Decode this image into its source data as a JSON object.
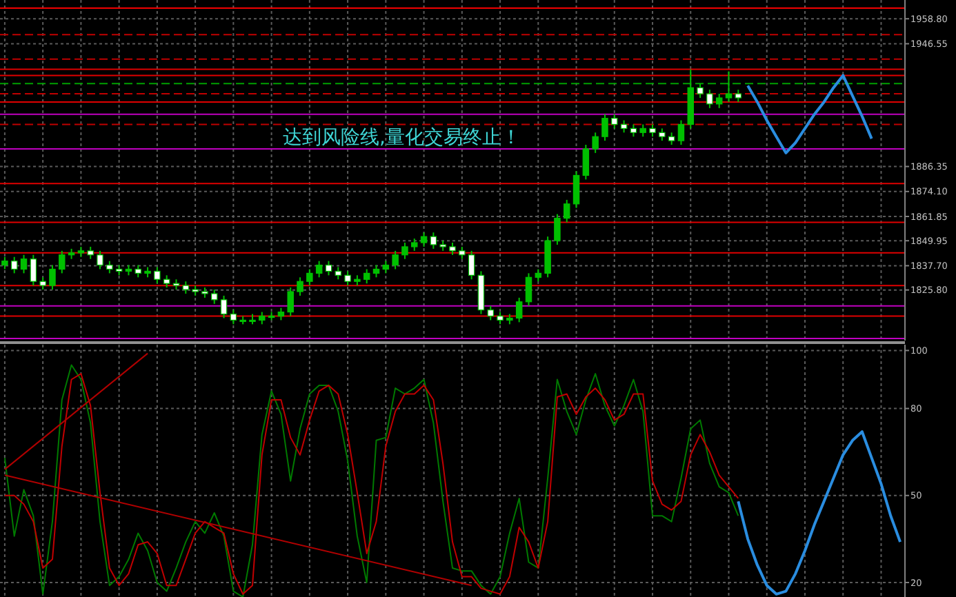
{
  "chart_data": [
    {
      "type": "candlestick",
      "annotations": [
        "达到风险线,量化交易终止！"
      ],
      "categories": [
        null,
        null,
        null,
        null,
        null,
        null,
        null,
        null,
        null,
        null,
        null,
        null,
        null,
        null,
        null,
        null,
        null,
        null,
        null,
        null,
        null,
        null,
        null,
        null,
        null,
        null,
        null,
        null,
        null,
        null,
        null,
        null,
        null,
        null,
        null,
        null,
        null,
        null,
        null,
        null,
        null,
        null,
        null,
        null,
        null,
        null,
        null,
        null,
        null,
        null,
        null,
        null,
        null,
        null,
        null,
        null,
        null,
        null,
        null,
        null,
        null,
        null,
        null,
        null,
        null,
        null,
        null,
        null,
        null,
        null,
        null,
        null,
        null,
        null,
        null,
        null,
        null,
        null,
        null,
        null,
        null,
        null,
        null,
        null,
        null,
        null,
        null,
        null,
        null,
        null,
        null,
        null,
        null,
        null,
        null
      ],
      "colors": [
        "#00c000",
        "#ffffff",
        "#00c000",
        "#ffffff",
        "#ffffff",
        "#00c000",
        "#00c000",
        "#00c000",
        "#00c000",
        "#ffffff",
        "#ffffff",
        "#ffffff",
        "#ffffff",
        "#00c000",
        "#ffffff",
        "#00c000",
        "#ffffff",
        "#ffffff",
        "#ffffff",
        "#ffffff",
        "#ffffff",
        "#ffffff",
        "#ffffff",
        "#ffffff",
        "#ffffff",
        "#00c000",
        "#00c000",
        "#00c000",
        "#00c000",
        "#00c000",
        "#00c000",
        "#00c000",
        "#00c000",
        "#00c000",
        "#ffffff",
        "#ffffff",
        "#ffffff",
        "#00c000",
        "#00c000",
        "#00c000",
        "#00c000",
        "#00c000",
        "#00c000",
        "#00c000",
        "#00c000",
        "#ffffff",
        "#ffffff",
        "#ffffff",
        "#ffffff",
        "#ffffff",
        "#ffffff",
        "#ffffff",
        "#ffffff",
        "#00c000",
        "#00c000",
        "#00c000",
        "#00c000",
        "#00c000",
        "#00c000",
        "#00c000",
        "#00c000",
        "#00c000",
        "#00c000",
        "#00c000",
        "#ffffff",
        "#ffffff",
        "#ffffff",
        "#00c000",
        "#ffffff",
        "#ffffff",
        "#ffffff",
        "#00c000",
        "#00c000",
        "#ffffff",
        "#ffffff",
        "#00c000",
        "#00c000",
        "#ffffff",
        null,
        null,
        null,
        null,
        null,
        null,
        null,
        null,
        null,
        null,
        null,
        null,
        null,
        null,
        null,
        null,
        null
      ],
      "ohlc": [
        [
          1838,
          1842,
          1836,
          1840
        ],
        [
          1840,
          1842,
          1834,
          1836
        ],
        [
          1836,
          1843,
          1834,
          1841
        ],
        [
          1841,
          1843,
          1828,
          1830
        ],
        [
          1830,
          1832,
          1826,
          1828
        ],
        [
          1828,
          1838,
          1826,
          1836
        ],
        [
          1836,
          1845,
          1834,
          1843
        ],
        [
          1843,
          1846,
          1841,
          1844
        ],
        [
          1844,
          1847,
          1842,
          1845
        ],
        [
          1845,
          1847,
          1841,
          1843
        ],
        [
          1843,
          1845,
          1836,
          1838
        ],
        [
          1838,
          1840,
          1834,
          1836
        ],
        [
          1836,
          1838,
          1833,
          1835
        ],
        [
          1835,
          1838,
          1833,
          1836
        ],
        [
          1836,
          1838,
          1832,
          1834
        ],
        [
          1834,
          1837,
          1832,
          1835
        ],
        [
          1835,
          1837,
          1829,
          1831
        ],
        [
          1831,
          1833,
          1827,
          1829
        ],
        [
          1829,
          1831,
          1826,
          1828
        ],
        [
          1828,
          1830,
          1824,
          1826
        ],
        [
          1826,
          1828,
          1823,
          1825
        ],
        [
          1825,
          1827,
          1822,
          1824
        ],
        [
          1824,
          1826,
          1819,
          1821
        ],
        [
          1821,
          1823,
          1812,
          1814
        ],
        [
          1814,
          1816,
          1809,
          1811
        ],
        [
          1811,
          1813,
          1809,
          1811
        ],
        [
          1811,
          1814,
          1809,
          1811
        ],
        [
          1811,
          1815,
          1809,
          1813
        ],
        [
          1813,
          1815,
          1811,
          1813
        ],
        [
          1813,
          1817,
          1811,
          1815
        ],
        [
          1815,
          1827,
          1813,
          1825
        ],
        [
          1825,
          1832,
          1823,
          1830
        ],
        [
          1830,
          1836,
          1828,
          1834
        ],
        [
          1834,
          1840,
          1832,
          1838
        ],
        [
          1838,
          1840,
          1833,
          1835
        ],
        [
          1835,
          1837,
          1831,
          1833
        ],
        [
          1833,
          1835,
          1828,
          1830
        ],
        [
          1830,
          1833,
          1828,
          1831
        ],
        [
          1831,
          1836,
          1829,
          1834
        ],
        [
          1834,
          1838,
          1832,
          1836
        ],
        [
          1836,
          1840,
          1834,
          1838
        ],
        [
          1838,
          1845,
          1836,
          1843
        ],
        [
          1843,
          1849,
          1841,
          1847
        ],
        [
          1847,
          1851,
          1845,
          1849
        ],
        [
          1849,
          1854,
          1847,
          1852
        ],
        [
          1852,
          1854,
          1846,
          1848
        ],
        [
          1848,
          1850,
          1845,
          1847
        ],
        [
          1847,
          1849,
          1843,
          1845
        ],
        [
          1845,
          1847,
          1841,
          1843
        ],
        [
          1843,
          1845,
          1831,
          1833
        ],
        [
          1833,
          1835,
          1814,
          1816
        ],
        [
          1816,
          1818,
          1811,
          1813
        ],
        [
          1813,
          1815,
          1809,
          1811
        ],
        [
          1811,
          1814,
          1809,
          1812
        ],
        [
          1812,
          1822,
          1810,
          1820
        ],
        [
          1820,
          1834,
          1818,
          1832
        ],
        [
          1832,
          1836,
          1830,
          1834
        ],
        [
          1834,
          1852,
          1832,
          1850
        ],
        [
          1850,
          1863,
          1848,
          1861
        ],
        [
          1861,
          1870,
          1859,
          1868
        ],
        [
          1868,
          1884,
          1866,
          1882
        ],
        [
          1882,
          1897,
          1880,
          1895
        ],
        [
          1895,
          1903,
          1893,
          1901
        ],
        [
          1901,
          1912,
          1899,
          1910
        ],
        [
          1910,
          1912,
          1905,
          1907
        ],
        [
          1907,
          1909,
          1903,
          1905
        ],
        [
          1905,
          1907,
          1901,
          1903
        ],
        [
          1903,
          1907,
          1901,
          1905
        ],
        [
          1905,
          1907,
          1901,
          1903
        ],
        [
          1903,
          1905,
          1899,
          1901
        ],
        [
          1901,
          1903,
          1897,
          1899
        ],
        [
          1899,
          1909,
          1897,
          1907
        ],
        [
          1907,
          1934,
          1905,
          1925
        ],
        [
          1925,
          1927,
          1920,
          1922
        ],
        [
          1922,
          1924,
          1915,
          1917
        ],
        [
          1917,
          1922,
          1915,
          1920
        ],
        [
          1920,
          1933,
          1918,
          1922
        ],
        [
          1922,
          1924,
          1918,
          1920
        ],
        null,
        null,
        null,
        null,
        null,
        null,
        null,
        null,
        null,
        null,
        null,
        null,
        null,
        null,
        null,
        null,
        null
      ],
      "series": [
        {
          "type": "line",
          "color": "#2a8de0",
          "values": [
            null,
            null,
            null,
            null,
            null,
            null,
            null,
            null,
            null,
            null,
            null,
            null,
            null,
            null,
            null,
            null,
            null,
            null,
            null,
            null,
            null,
            null,
            null,
            null,
            null,
            null,
            null,
            null,
            null,
            null,
            null,
            null,
            null,
            null,
            null,
            null,
            null,
            null,
            null,
            null,
            null,
            null,
            null,
            null,
            null,
            null,
            null,
            null,
            null,
            null,
            null,
            null,
            null,
            null,
            null,
            null,
            null,
            null,
            null,
            null,
            null,
            null,
            null,
            null,
            null,
            null,
            null,
            null,
            null,
            null,
            null,
            null,
            null,
            null,
            null,
            null,
            null,
            null,
            1926,
            1918,
            1909,
            1901,
            1893,
            1898,
            1905,
            1912,
            1918,
            1925,
            1931,
            1921,
            1911,
            1900,
            null,
            null,
            null
          ]
        }
      ],
      "ylim": [
        1801,
        1968
      ],
      "yticks": [
        {
          "value": 1958.8,
          "label": "1958.80"
        },
        {
          "value": 1946.55,
          "label": "1946.55"
        },
        {
          "value": 1886.35,
          "label": "1886.35"
        },
        {
          "value": 1874.1,
          "label": "1874.10"
        },
        {
          "value": 1861.85,
          "label": "1861.85"
        },
        {
          "value": 1849.95,
          "label": "1849.95"
        },
        {
          "value": 1837.7,
          "label": "1837.70"
        },
        {
          "value": 1825.8,
          "label": "1825.80"
        }
      ],
      "grid": true,
      "ref_lines": [
        {
          "axis": "y",
          "value": 1964,
          "color": "#ff0000"
        },
        {
          "axis": "y",
          "value": 1951,
          "color": "#c00000",
          "line_style": "dashed"
        },
        {
          "axis": "y",
          "value": 1939,
          "color": "#c00000",
          "line_style": "dashed"
        },
        {
          "axis": "y",
          "value": 1934,
          "color": "#e00000"
        },
        {
          "axis": "y",
          "value": 1931,
          "color": "#e00000"
        },
        {
          "axis": "y",
          "value": 1927,
          "color": "#00a000",
          "line_style": "dashed"
        },
        {
          "axis": "y",
          "value": 1922,
          "color": "#c00000",
          "line_style": "dashed"
        },
        {
          "axis": "y",
          "value": 1918,
          "color": "#e00000"
        },
        {
          "axis": "y",
          "value": 1912,
          "color": "#c000c0"
        },
        {
          "axis": "y",
          "value": 1907,
          "color": "#c00000",
          "line_style": "dashed"
        },
        {
          "axis": "y",
          "value": 1895,
          "color": "#c000c0"
        },
        {
          "axis": "y",
          "value": 1878,
          "color": "#e00000"
        },
        {
          "axis": "y",
          "value": 1859,
          "color": "#e00000"
        },
        {
          "axis": "y",
          "value": 1844,
          "color": "#e00000"
        },
        {
          "axis": "y",
          "value": 1828,
          "color": "#e00000"
        },
        {
          "axis": "y",
          "value": 1818,
          "color": "#c000c0"
        },
        {
          "axis": "y",
          "value": 1813,
          "color": "#e00000"
        },
        {
          "axis": "y",
          "value": 1802,
          "color": "#c000c0"
        }
      ]
    },
    {
      "type": "line",
      "categories": [
        null,
        null,
        null,
        null,
        null,
        null,
        null,
        null,
        null,
        null,
        null,
        null,
        null,
        null,
        null,
        null,
        null,
        null,
        null,
        null,
        null,
        null,
        null,
        null,
        null,
        null,
        null,
        null,
        null,
        null,
        null,
        null,
        null,
        null,
        null,
        null,
        null,
        null,
        null,
        null,
        null,
        null,
        null,
        null,
        null,
        null,
        null,
        null,
        null,
        null,
        null,
        null,
        null,
        null,
        null,
        null,
        null,
        null,
        null,
        null,
        null,
        null,
        null,
        null,
        null,
        null,
        null,
        null,
        null,
        null,
        null,
        null,
        null,
        null,
        null,
        null,
        null,
        null,
        null,
        null,
        null,
        null,
        null,
        null,
        null,
        null,
        null,
        null,
        null,
        null,
        null,
        null,
        null,
        null,
        null
      ],
      "series": [
        {
          "color": "#007a00",
          "values": [
            63,
            36,
            52,
            43,
            16,
            41,
            83,
            95,
            90,
            75,
            41,
            19,
            22,
            28,
            37,
            31,
            20,
            17,
            25,
            34,
            41,
            37,
            44,
            36,
            17,
            15,
            33,
            71,
            86,
            78,
            55,
            73,
            85,
            88,
            88,
            79,
            62,
            36,
            20,
            69,
            70,
            87,
            85,
            87,
            90,
            75,
            48,
            25,
            24,
            24,
            19,
            16,
            22,
            37,
            49,
            27,
            25,
            56,
            90,
            79,
            71,
            83,
            92,
            81,
            74,
            81,
            90,
            79,
            43,
            43,
            41,
            56,
            73,
            76,
            61,
            53,
            51,
            43,
            null,
            null,
            null,
            null,
            null,
            null,
            null,
            null,
            null,
            null,
            null,
            null,
            null,
            null,
            null,
            null,
            null
          ]
        },
        {
          "color": "#c00000",
          "values": [
            50,
            50,
            47,
            41,
            25,
            28,
            67,
            90,
            92,
            81,
            51,
            25,
            19,
            23,
            33,
            34,
            30,
            19,
            19,
            28,
            37,
            41,
            39,
            37,
            23,
            16,
            19,
            64,
            83,
            83,
            70,
            64,
            76,
            86,
            88,
            85,
            71,
            51,
            30,
            41,
            67,
            79,
            85,
            85,
            88,
            83,
            61,
            34,
            22,
            22,
            18,
            17,
            16,
            22,
            39,
            34,
            25,
            41,
            84,
            85,
            78,
            84,
            87,
            83,
            76,
            78,
            85,
            85,
            55,
            47,
            45,
            48,
            64,
            71,
            65,
            57,
            53,
            49,
            null,
            null,
            null,
            null,
            null,
            null,
            null,
            null,
            null,
            null,
            null,
            null,
            null,
            null,
            null,
            null,
            null
          ]
        },
        {
          "color": "#2a8de0",
          "values": [
            null,
            null,
            null,
            null,
            null,
            null,
            null,
            null,
            null,
            null,
            null,
            null,
            null,
            null,
            null,
            null,
            null,
            null,
            null,
            null,
            null,
            null,
            null,
            null,
            null,
            null,
            null,
            null,
            null,
            null,
            null,
            null,
            null,
            null,
            null,
            null,
            null,
            null,
            null,
            null,
            null,
            null,
            null,
            null,
            null,
            null,
            null,
            null,
            null,
            null,
            null,
            null,
            null,
            null,
            null,
            null,
            null,
            null,
            null,
            null,
            null,
            null,
            null,
            null,
            null,
            null,
            null,
            null,
            null,
            null,
            null,
            null,
            null,
            null,
            null,
            null,
            null,
            48,
            35,
            26,
            19,
            16,
            17,
            23,
            31,
            40,
            48,
            56,
            64,
            69,
            72,
            63,
            54,
            43,
            34
          ]
        },
        {
          "color": "#b00000",
          "values": [
            59,
            null,
            null,
            null,
            null,
            null,
            null,
            null,
            null,
            null,
            null,
            null,
            null,
            null,
            null,
            99,
            null,
            null,
            null,
            null,
            null,
            null,
            null,
            null,
            null,
            null,
            null,
            null,
            null,
            null,
            null,
            null,
            null,
            null,
            null,
            null,
            null,
            null,
            null,
            null,
            null,
            null,
            null,
            null,
            null,
            null,
            null,
            null,
            null,
            null,
            null,
            null,
            null,
            null,
            null,
            null,
            null,
            null,
            null,
            null,
            null,
            null,
            null,
            null,
            null,
            null,
            null,
            null,
            null,
            null,
            null,
            null,
            null,
            null,
            null,
            null,
            null,
            null,
            null,
            null,
            null,
            null,
            null,
            null,
            null,
            null,
            null,
            null,
            null,
            null,
            null,
            null,
            null,
            null,
            null
          ]
        },
        {
          "color": "#b00000",
          "values": [
            57,
            null,
            null,
            null,
            null,
            null,
            null,
            null,
            null,
            null,
            null,
            null,
            null,
            null,
            null,
            null,
            null,
            null,
            null,
            null,
            null,
            null,
            null,
            null,
            null,
            null,
            null,
            null,
            null,
            null,
            null,
            null,
            null,
            null,
            null,
            null,
            null,
            null,
            null,
            null,
            null,
            null,
            null,
            null,
            null,
            null,
            null,
            null,
            null,
            19,
            null,
            null,
            null,
            null,
            null,
            null,
            null,
            null,
            null,
            null,
            null,
            null,
            null,
            null,
            null,
            null,
            null,
            null,
            null,
            null,
            null,
            null,
            null,
            null,
            null,
            null,
            null,
            null,
            null,
            null,
            null,
            null,
            null,
            null,
            null,
            null,
            null,
            null,
            null,
            null,
            null,
            null,
            null,
            null,
            null
          ]
        }
      ],
      "ylim": [
        15,
        102
      ],
      "yticks": [
        100,
        80,
        50,
        20
      ],
      "grid": true
    }
  ]
}
